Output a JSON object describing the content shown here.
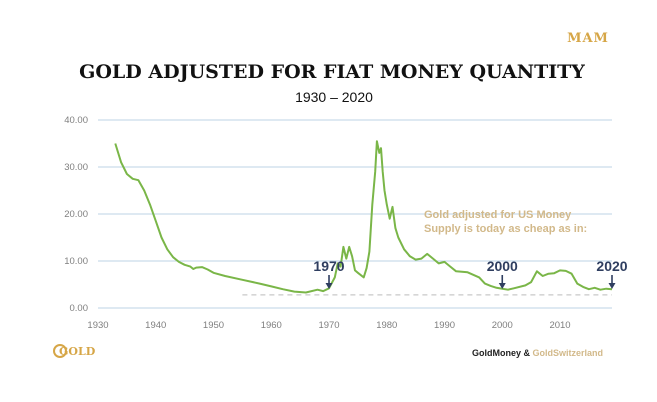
{
  "branding": {
    "top_logo": "MAM",
    "bottom_logo": "GOLD",
    "footer_a": "GoldMoney",
    "footer_amp": " & ",
    "footer_b": "GoldSwitzerland",
    "colors": {
      "gold": "#d6a647",
      "navy": "#2f3e60",
      "tan": "#d2b98a"
    }
  },
  "chart_data": {
    "type": "line",
    "title": "GOLD ADJUSTED FOR FIAT MONEY QUANTITY",
    "subtitle": "1930 – 2020",
    "xlabel": "",
    "ylabel": "",
    "xlim": [
      1930,
      2019
    ],
    "ylim": [
      0,
      40
    ],
    "x_ticks": [
      1930,
      1940,
      1950,
      1960,
      1970,
      1980,
      1990,
      2000,
      2010
    ],
    "y_ticks": [
      "0.00",
      "10.00",
      "20.00",
      "30.00",
      "40.00"
    ],
    "y_tick_values": [
      0,
      10,
      20,
      30,
      40
    ],
    "grid": "horizontal",
    "line_color": "#7ab648",
    "reference_line": {
      "value": 2.8,
      "from_year": 1955,
      "to_year": 2019,
      "color": "#c8c8c8"
    },
    "series": [
      {
        "color": "#7ab648",
        "points": [
          [
            1933,
            35
          ],
          [
            1934,
            31
          ],
          [
            1935,
            28.5
          ],
          [
            1936,
            27.5
          ],
          [
            1937,
            27.2
          ],
          [
            1938,
            25
          ],
          [
            1939,
            22
          ],
          [
            1940,
            18.5
          ],
          [
            1941,
            15
          ],
          [
            1942,
            12.5
          ],
          [
            1943,
            10.8
          ],
          [
            1944,
            9.8
          ],
          [
            1945,
            9.2
          ],
          [
            1946,
            8.8
          ],
          [
            1946.5,
            8.3
          ],
          [
            1947,
            8.6
          ],
          [
            1948,
            8.7
          ],
          [
            1949,
            8.2
          ],
          [
            1950,
            7.5
          ],
          [
            1952,
            6.8
          ],
          [
            1955,
            6
          ],
          [
            1958,
            5.2
          ],
          [
            1960,
            4.6
          ],
          [
            1962,
            4
          ],
          [
            1964,
            3.5
          ],
          [
            1966,
            3.3
          ],
          [
            1968,
            3.9
          ],
          [
            1969,
            3.6
          ],
          [
            1970,
            4.2
          ],
          [
            1971,
            6.5
          ],
          [
            1971.5,
            9.5
          ],
          [
            1972,
            8.8
          ],
          [
            1972.5,
            13
          ],
          [
            1973,
            10.5
          ],
          [
            1973.5,
            13
          ],
          [
            1974,
            11
          ],
          [
            1974.5,
            8
          ],
          [
            1975,
            7.5
          ],
          [
            1976,
            6.5
          ],
          [
            1976.5,
            8.5
          ],
          [
            1977,
            12
          ],
          [
            1977.5,
            22
          ],
          [
            1978,
            29
          ],
          [
            1978.3,
            35.5
          ],
          [
            1978.7,
            33
          ],
          [
            1979,
            34
          ],
          [
            1979.3,
            29
          ],
          [
            1979.6,
            25
          ],
          [
            1980,
            22
          ],
          [
            1980.5,
            19
          ],
          [
            1981,
            21.5
          ],
          [
            1981.5,
            17
          ],
          [
            1982,
            15
          ],
          [
            1983,
            12.5
          ],
          [
            1984,
            11
          ],
          [
            1985,
            10.3
          ],
          [
            1986,
            10.5
          ],
          [
            1987,
            11.5
          ],
          [
            1988,
            10.5
          ],
          [
            1989,
            9.5
          ],
          [
            1990,
            9.8
          ],
          [
            1991,
            8.8
          ],
          [
            1992,
            7.8
          ],
          [
            1994,
            7.6
          ],
          [
            1996,
            6.5
          ],
          [
            1997,
            5.2
          ],
          [
            1998,
            4.7
          ],
          [
            1999,
            4.3
          ],
          [
            2000,
            4.1
          ],
          [
            2001,
            3.9
          ],
          [
            2002,
            4.2
          ],
          [
            2004,
            4.8
          ],
          [
            2005,
            5.5
          ],
          [
            2006,
            7.8
          ],
          [
            2007,
            6.8
          ],
          [
            2008,
            7.3
          ],
          [
            2009,
            7.4
          ],
          [
            2010,
            8
          ],
          [
            2011,
            7.9
          ],
          [
            2012,
            7.3
          ],
          [
            2013,
            5.2
          ],
          [
            2014,
            4.5
          ],
          [
            2015,
            4
          ],
          [
            2016,
            4.3
          ],
          [
            2017,
            3.9
          ],
          [
            2018,
            4.1
          ],
          [
            2019,
            4
          ]
        ]
      }
    ],
    "annotations": [
      {
        "label": "1970",
        "year": 1970
      },
      {
        "label": "2000",
        "year": 2000
      },
      {
        "label": "2020",
        "year": 2019
      }
    ],
    "note_lines": [
      "Gold adjusted for US Money",
      "Supply is today as cheap as in:"
    ]
  }
}
